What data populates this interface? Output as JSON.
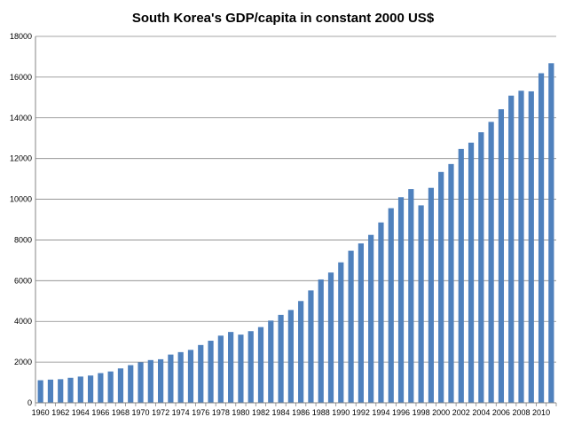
{
  "chart_data": {
    "type": "bar",
    "title": "South Korea's GDP/capita in constant 2000 US$",
    "xlabel": "",
    "ylabel": "",
    "ylim": [
      0,
      18000
    ],
    "yticks": [
      "0",
      "2000",
      "4000",
      "6000",
      "8000",
      "10000",
      "12000",
      "14000",
      "16000",
      "18000"
    ],
    "categories": [
      "1960",
      "1961",
      "1962",
      "1963",
      "1964",
      "1965",
      "1966",
      "1967",
      "1968",
      "1969",
      "1970",
      "1971",
      "1972",
      "1973",
      "1974",
      "1975",
      "1976",
      "1977",
      "1978",
      "1979",
      "1980",
      "1981",
      "1982",
      "1983",
      "1984",
      "1985",
      "1986",
      "1987",
      "1988",
      "1989",
      "1990",
      "1991",
      "1992",
      "1993",
      "1994",
      "1995",
      "1996",
      "1997",
      "1998",
      "1999",
      "2000",
      "2001",
      "2002",
      "2003",
      "2004",
      "2005",
      "2006",
      "2007",
      "2008",
      "2009",
      "2010",
      "2011"
    ],
    "xtick_labels": [
      "1960",
      "1962",
      "1964",
      "1966",
      "1968",
      "1970",
      "1972",
      "1974",
      "1976",
      "1978",
      "1980",
      "1982",
      "1984",
      "1986",
      "1988",
      "1990",
      "1992",
      "1994",
      "1996",
      "1998",
      "2000",
      "2002",
      "2004",
      "2006",
      "2008",
      "2010"
    ],
    "values": [
      1110,
      1140,
      1160,
      1230,
      1290,
      1340,
      1460,
      1540,
      1690,
      1850,
      1990,
      2100,
      2140,
      2370,
      2490,
      2600,
      2840,
      3050,
      3300,
      3480,
      3350,
      3520,
      3720,
      4040,
      4320,
      4560,
      5000,
      5520,
      6060,
      6400,
      6900,
      7470,
      7830,
      8250,
      8860,
      9560,
      10100,
      10500,
      9700,
      10560,
      11340,
      11730,
      12470,
      12780,
      13290,
      13800,
      14420,
      15090,
      15330,
      15300,
      16190,
      16680
    ],
    "colors": {
      "bar": "#4f81bd",
      "grid": "#868686",
      "axis": "#868686"
    },
    "grid": true,
    "legend": "none"
  }
}
